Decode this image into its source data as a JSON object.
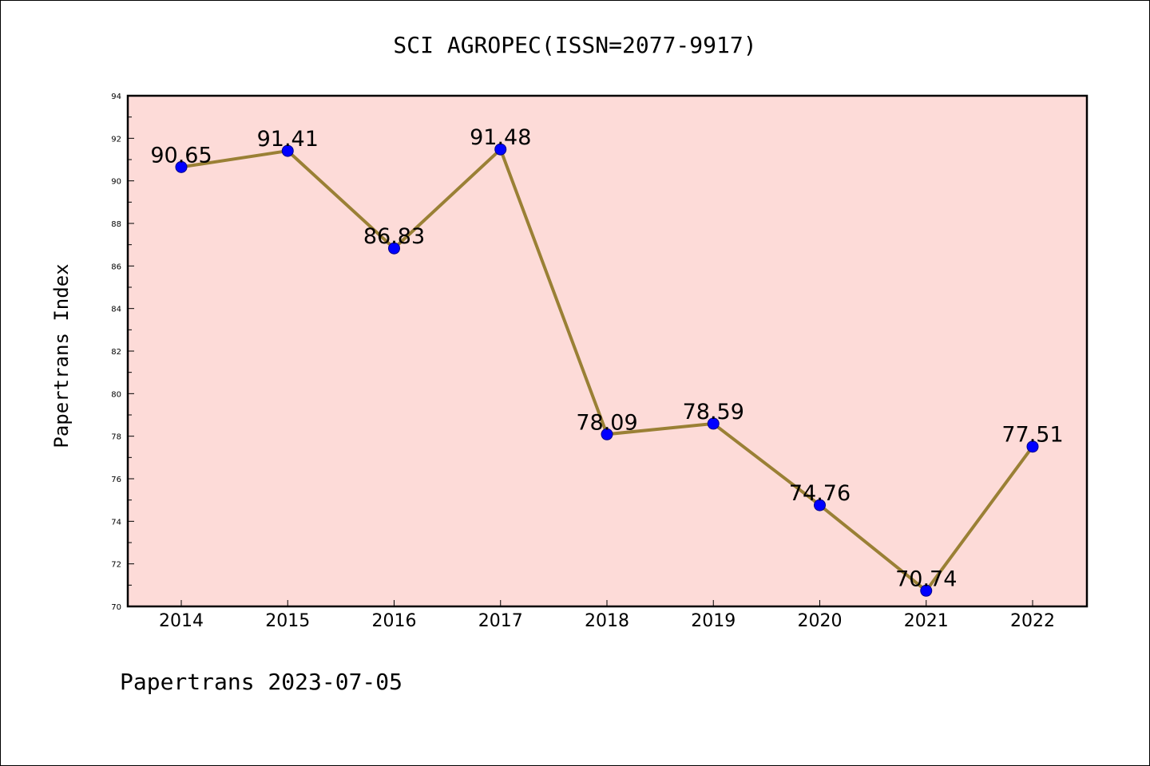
{
  "chart_data": {
    "type": "line",
    "title": "SCI AGROPEC(ISSN=2077-9917)",
    "ylabel": "Papertrans Index",
    "xlabel": "",
    "footer": "Papertrans 2023-07-05",
    "categories": [
      "2014",
      "2015",
      "2016",
      "2017",
      "2018",
      "2019",
      "2020",
      "2021",
      "2022"
    ],
    "values": [
      90.65,
      91.41,
      86.83,
      91.48,
      78.09,
      78.59,
      74.76,
      70.74,
      77.51
    ],
    "value_labels": [
      "90.65",
      "91.41",
      "86.83",
      "91.48",
      "78.09",
      "78.59",
      "74.76",
      "70.74",
      "77.51"
    ],
    "ylim": [
      70,
      94
    ],
    "yticks": [
      "70",
      "72",
      "74",
      "76",
      "78",
      "80",
      "82",
      "84",
      "86",
      "88",
      "90",
      "92",
      "94"
    ],
    "grid": false,
    "colors": {
      "plot_background": "#fddbd8",
      "line": "#9a8035",
      "marker": "#0000ff",
      "marker_edge": "#00008b"
    }
  }
}
